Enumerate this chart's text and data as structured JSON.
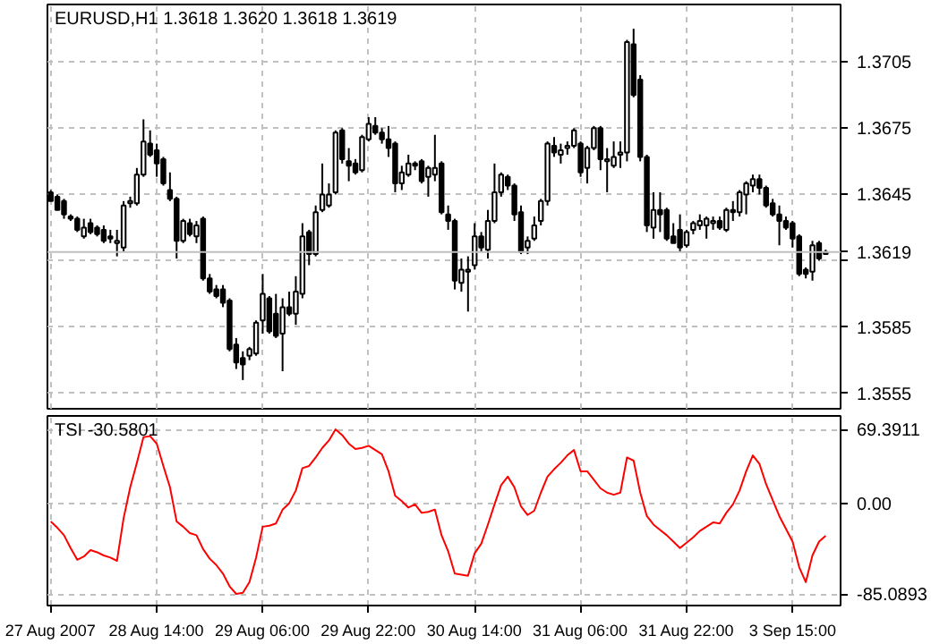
{
  "chart_data": [
    {
      "type": "candlestick",
      "title": "EURUSD,H1  1.3618 1.3620 1.3618 1.3619",
      "color": "#000000",
      "ohlc": [
        [
          1.3646,
          1.3647,
          1.3642,
          1.3642
        ],
        [
          1.3644,
          1.3645,
          1.3638,
          1.3638
        ],
        [
          1.3642,
          1.3643,
          1.3634,
          1.3636
        ],
        [
          1.3635,
          1.3636,
          1.3633,
          1.3634
        ],
        [
          1.3634,
          1.3635,
          1.3628,
          1.3629
        ],
        [
          1.3626,
          1.3634,
          1.3625,
          1.363
        ],
        [
          1.3632,
          1.3634,
          1.3627,
          1.3628
        ],
        [
          1.363,
          1.3631,
          1.3626,
          1.3627
        ],
        [
          1.3629,
          1.3631,
          1.3623,
          1.3624
        ],
        [
          1.3626,
          1.3629,
          1.3623,
          1.3625
        ],
        [
          1.3623,
          1.3629,
          1.3617,
          1.3624
        ],
        [
          1.3621,
          1.3642,
          1.3619,
          1.364
        ],
        [
          1.3641,
          1.3644,
          1.3639,
          1.3642
        ],
        [
          1.3641,
          1.3657,
          1.364,
          1.3654
        ],
        [
          1.3654,
          1.3679,
          1.3653,
          1.3669
        ],
        [
          1.3668,
          1.3674,
          1.3662,
          1.3663
        ],
        [
          1.3665,
          1.3668,
          1.3653,
          1.3659
        ],
        [
          1.3661,
          1.3662,
          1.3649,
          1.365
        ],
        [
          1.3647,
          1.3655,
          1.3642,
          1.3643
        ],
        [
          1.3643,
          1.3644,
          1.3616,
          1.3624
        ],
        [
          1.3624,
          1.3634,
          1.3623,
          1.3633
        ],
        [
          1.3632,
          1.3634,
          1.3626,
          1.3627
        ],
        [
          1.3626,
          1.3633,
          1.3623,
          1.3631
        ],
        [
          1.3634,
          1.3635,
          1.3606,
          1.3607
        ],
        [
          1.3607,
          1.3609,
          1.36,
          1.3601
        ],
        [
          1.3602,
          1.3604,
          1.3598,
          1.3599
        ],
        [
          1.3602,
          1.3604,
          1.3594,
          1.3596
        ],
        [
          1.3597,
          1.3598,
          1.3574,
          1.3575
        ],
        [
          1.3577,
          1.358,
          1.3566,
          1.3569
        ],
        [
          1.3571,
          1.3574,
          1.3561,
          1.3568
        ],
        [
          1.3572,
          1.3576,
          1.357,
          1.3575
        ],
        [
          1.3573,
          1.3588,
          1.3572,
          1.3587
        ],
        [
          1.3588,
          1.3609,
          1.3582,
          1.36
        ],
        [
          1.3598,
          1.3599,
          1.3582,
          1.3583
        ],
        [
          1.3591,
          1.36,
          1.358,
          1.3581
        ],
        [
          1.3582,
          1.3598,
          1.3565,
          1.3594
        ],
        [
          1.3594,
          1.3601,
          1.359,
          1.3591
        ],
        [
          1.3591,
          1.3608,
          1.3586,
          1.3601
        ],
        [
          1.36,
          1.3632,
          1.3598,
          1.3626
        ],
        [
          1.3628,
          1.3629,
          1.3613,
          1.3618
        ],
        [
          1.3618,
          1.364,
          1.3617,
          1.3637
        ],
        [
          1.3638,
          1.3659,
          1.3637,
          1.3645
        ],
        [
          1.364,
          1.365,
          1.3639,
          1.3645
        ],
        [
          1.3646,
          1.3674,
          1.3645,
          1.3673
        ],
        [
          1.3674,
          1.3675,
          1.3659,
          1.3661
        ],
        [
          1.366,
          1.3666,
          1.3651,
          1.3658
        ],
        [
          1.3659,
          1.3661,
          1.3654,
          1.3655
        ],
        [
          1.3656,
          1.3672,
          1.3655,
          1.3671
        ],
        [
          1.367,
          1.368,
          1.3669,
          1.3677
        ],
        [
          1.3676,
          1.368,
          1.3672,
          1.3673
        ],
        [
          1.3673,
          1.3675,
          1.3668,
          1.367
        ],
        [
          1.367,
          1.3676,
          1.3662,
          1.3666
        ],
        [
          1.3668,
          1.3669,
          1.3646,
          1.365
        ],
        [
          1.365,
          1.3658,
          1.3647,
          1.3655
        ],
        [
          1.3654,
          1.3663,
          1.3653,
          1.3659
        ],
        [
          1.3659,
          1.366,
          1.3656,
          1.3658
        ],
        [
          1.366,
          1.3661,
          1.365,
          1.3651
        ],
        [
          1.3653,
          1.3658,
          1.3644,
          1.3657
        ],
        [
          1.3654,
          1.3672,
          1.3651,
          1.3657
        ],
        [
          1.3659,
          1.366,
          1.3636,
          1.3637
        ],
        [
          1.3636,
          1.364,
          1.3629,
          1.3633
        ],
        [
          1.3633,
          1.3634,
          1.3602,
          1.3606
        ],
        [
          1.3605,
          1.3616,
          1.3601,
          1.3611
        ],
        [
          1.361,
          1.3617,
          1.3592,
          1.3611
        ],
        [
          1.3613,
          1.3632,
          1.3611,
          1.3626
        ],
        [
          1.3626,
          1.3628,
          1.3619,
          1.3621
        ],
        [
          1.362,
          1.3638,
          1.3616,
          1.3633
        ],
        [
          1.3633,
          1.3659,
          1.3632,
          1.3646
        ],
        [
          1.3646,
          1.3655,
          1.3644,
          1.3654
        ],
        [
          1.3653,
          1.3654,
          1.3647,
          1.3649
        ],
        [
          1.3649,
          1.365,
          1.3633,
          1.3636
        ],
        [
          1.3637,
          1.364,
          1.3618,
          1.3619
        ],
        [
          1.3621,
          1.3626,
          1.3618,
          1.3624
        ],
        [
          1.3625,
          1.3635,
          1.3624,
          1.3631
        ],
        [
          1.3633,
          1.3643,
          1.3631,
          1.3642
        ],
        [
          1.3642,
          1.3669,
          1.364,
          1.3668
        ],
        [
          1.3667,
          1.3671,
          1.3662,
          1.3664
        ],
        [
          1.3663,
          1.3668,
          1.3659,
          1.3665
        ],
        [
          1.3666,
          1.3669,
          1.3663,
          1.3667
        ],
        [
          1.3667,
          1.3675,
          1.3666,
          1.3674
        ],
        [
          1.3668,
          1.3669,
          1.3653,
          1.3655
        ],
        [
          1.3657,
          1.3667,
          1.365,
          1.3666
        ],
        [
          1.3666,
          1.3676,
          1.3665,
          1.3675
        ],
        [
          1.3675,
          1.3676,
          1.3656,
          1.3661
        ],
        [
          1.366,
          1.3666,
          1.3646,
          1.3661
        ],
        [
          1.3658,
          1.3669,
          1.3657,
          1.3662
        ],
        [
          1.3663,
          1.3669,
          1.3657,
          1.3664
        ],
        [
          1.3664,
          1.3715,
          1.366,
          1.3714
        ],
        [
          1.3713,
          1.372,
          1.3689,
          1.369
        ],
        [
          1.3697,
          1.3699,
          1.366,
          1.3662
        ],
        [
          1.3662,
          1.3663,
          1.3628,
          1.3631
        ],
        [
          1.363,
          1.3646,
          1.3625,
          1.3638
        ],
        [
          1.3638,
          1.3646,
          1.3628,
          1.3636
        ],
        [
          1.3638,
          1.3639,
          1.3624,
          1.3625
        ],
        [
          1.3626,
          1.3632,
          1.3623,
          1.3623
        ],
        [
          1.3629,
          1.3636,
          1.3619,
          1.3621
        ],
        [
          1.3622,
          1.3629,
          1.3621,
          1.3628
        ],
        [
          1.3629,
          1.3633,
          1.3627,
          1.3632
        ],
        [
          1.3631,
          1.3636,
          1.3629,
          1.3633
        ],
        [
          1.3631,
          1.3635,
          1.3625,
          1.3634
        ],
        [
          1.3632,
          1.3635,
          1.3629,
          1.3633
        ],
        [
          1.3633,
          1.3635,
          1.3629,
          1.363
        ],
        [
          1.3629,
          1.3639,
          1.3628,
          1.3638
        ],
        [
          1.3638,
          1.3642,
          1.3633,
          1.3637
        ],
        [
          1.3637,
          1.3647,
          1.3635,
          1.3646
        ],
        [
          1.3645,
          1.3651,
          1.3636,
          1.365
        ],
        [
          1.3649,
          1.3654,
          1.3646,
          1.3652
        ],
        [
          1.3652,
          1.3654,
          1.3645,
          1.3648
        ],
        [
          1.3648,
          1.3649,
          1.3639,
          1.364
        ],
        [
          1.3641,
          1.3643,
          1.3635,
          1.3636
        ],
        [
          1.3636,
          1.364,
          1.3622,
          1.3633
        ],
        [
          1.3633,
          1.3635,
          1.3629,
          1.363
        ],
        [
          1.3632,
          1.3633,
          1.3621,
          1.3625
        ],
        [
          1.3626,
          1.3627,
          1.3608,
          1.3609
        ],
        [
          1.3611,
          1.3612,
          1.3607,
          1.3609
        ],
        [
          1.361,
          1.3624,
          1.3606,
          1.3622
        ],
        [
          1.3623,
          1.3624,
          1.3615,
          1.3616
        ],
        [
          1.3618,
          1.362,
          1.3618,
          1.3619
        ]
      ],
      "categories": [
        null,
        null,
        null,
        null,
        null,
        null,
        null,
        null,
        null,
        null,
        null,
        null,
        null,
        null,
        null,
        null,
        null,
        null,
        null,
        null,
        null,
        null,
        null,
        null,
        null,
        null,
        null,
        null,
        null,
        null,
        null,
        null,
        null,
        null,
        null,
        null,
        null,
        null,
        null,
        null,
        null,
        null,
        null,
        null,
        null,
        null,
        null,
        null,
        null,
        null,
        null,
        null,
        null,
        null,
        null,
        null,
        null,
        null,
        null,
        null,
        null,
        null,
        null,
        null,
        null,
        null,
        null,
        null,
        null,
        null,
        null,
        null,
        null,
        null,
        null,
        null,
        null,
        null,
        null,
        null,
        null,
        null,
        null,
        null,
        null,
        null,
        null,
        null,
        null,
        null,
        null,
        null,
        null,
        null,
        null,
        null,
        null,
        null,
        null,
        null,
        null,
        null,
        null,
        null,
        null,
        null,
        null,
        null,
        null,
        null,
        null,
        null,
        null,
        null,
        null,
        null,
        null,
        null
      ],
      "ylim": [
        1.3548,
        1.3731
      ],
      "yticks": [
        1.3555,
        1.3585,
        {
          "value": 1.3615,
          "label": null
        },
        1.3645,
        1.3675,
        1.3705
      ],
      "ref_lines": [
        {
          "axis": "y",
          "value": 1.3619,
          "label": "1.3619",
          "color": "#c0c0c0"
        }
      ],
      "grid": true,
      "tick_labels": "y"
    },
    {
      "type": "line",
      "title": "TSI -30.5801",
      "categories": [
        "27 Aug 2007",
        null,
        null,
        null,
        null,
        null,
        null,
        null,
        null,
        null,
        null,
        null,
        null,
        null,
        null,
        null,
        "28 Aug 14:00",
        null,
        null,
        null,
        null,
        null,
        null,
        null,
        null,
        null,
        null,
        null,
        null,
        null,
        null,
        null,
        "29 Aug 06:00",
        null,
        null,
        null,
        null,
        null,
        null,
        null,
        null,
        null,
        null,
        null,
        null,
        null,
        null,
        null,
        "29 Aug 22:00",
        null,
        null,
        null,
        null,
        null,
        null,
        null,
        null,
        null,
        null,
        null,
        null,
        null,
        null,
        null,
        "30 Aug 14:00",
        null,
        null,
        null,
        null,
        null,
        null,
        null,
        null,
        null,
        null,
        null,
        null,
        null,
        null,
        null,
        "31 Aug 06:00",
        null,
        null,
        null,
        null,
        null,
        null,
        null,
        null,
        null,
        null,
        null,
        null,
        null,
        null,
        null,
        "31 Aug 22:00",
        null,
        null,
        null,
        null,
        null,
        null,
        null,
        null,
        null,
        null,
        null,
        null,
        null,
        null,
        null,
        "3 Sep 15:00",
        null,
        null,
        null,
        null,
        null
      ],
      "series": [
        {
          "color": "#ff0000",
          "values": [
            -17,
            -23,
            -30,
            -42,
            -53,
            -50,
            -44,
            -46,
            -49,
            -51,
            -54,
            -14,
            15,
            38,
            62,
            63,
            56,
            35,
            15,
            -17,
            -22,
            -28,
            -30,
            -43,
            -52,
            -58,
            -66,
            -78,
            -85.0893,
            -84,
            -74,
            -51,
            -22,
            -21,
            -19,
            -6,
            0,
            12,
            33,
            35,
            43,
            52,
            59,
            69.3911,
            64,
            56,
            51,
            52,
            54,
            50,
            46,
            30,
            7,
            2,
            -4,
            -1,
            -9,
            -8,
            -6,
            -30,
            -45,
            -66,
            -67,
            -68,
            -47,
            -38,
            -20,
            -1,
            17,
            25,
            15,
            -3,
            -11,
            -7,
            10,
            25,
            32,
            38,
            45,
            50,
            30,
            30,
            22,
            14,
            10,
            8,
            10,
            43,
            40,
            10,
            -12,
            -20,
            -25,
            -30,
            -36,
            -42,
            -37,
            -32,
            -26,
            -22,
            -18,
            -19,
            -9,
            -1,
            12,
            30,
            45,
            37,
            18,
            3,
            -12,
            -24,
            -36,
            -60,
            -74,
            -49,
            -36,
            -30.5801
          ]
        }
      ],
      "ylim": [
        -96,
        82
      ],
      "yticks": [
        {
          "value": 69.3911,
          "label": "69.3911"
        },
        {
          "value": 0,
          "label": "0.00"
        },
        {
          "value": -85.0893,
          "label": "-85.0893"
        }
      ],
      "grid": true
    }
  ]
}
